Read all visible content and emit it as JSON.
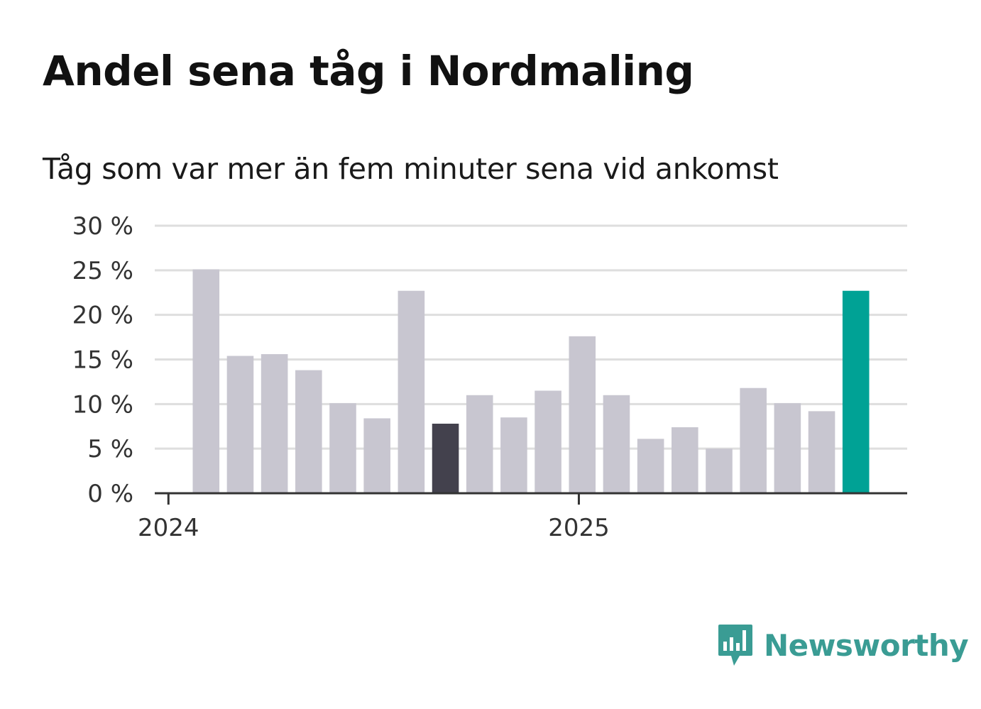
{
  "chart_data": {
    "type": "bar",
    "title": "Andel sena tåg i Nordmaling",
    "subtitle": "Tåg som var mer än fem minuter sena vid ankomst",
    "xlabel": "",
    "ylabel": "",
    "ylim": [
      0,
      30
    ],
    "yticks": [
      0,
      5,
      10,
      15,
      20,
      25,
      30
    ],
    "ytick_labels": [
      "0 %",
      "5 %",
      "10 %",
      "15 %",
      "20 %",
      "25 %",
      "30 %"
    ],
    "x_axis_labels": [
      {
        "label": "2024",
        "index": 0
      },
      {
        "label": "2025",
        "index": 12
      }
    ],
    "categories": [
      "2024-01",
      "2024-02",
      "2024-03",
      "2024-04",
      "2024-05",
      "2024-06",
      "2024-07",
      "2024-08",
      "2024-09",
      "2024-10",
      "2024-11",
      "2024-12",
      "2025-01",
      "2025-02",
      "2025-03",
      "2025-04",
      "2025-05",
      "2025-06",
      "2025-07",
      "2025-08",
      "2025-09",
      "2025-10"
    ],
    "values": [
      null,
      25.1,
      15.4,
      15.6,
      13.8,
      10.1,
      8.4,
      22.7,
      7.8,
      11.0,
      8.5,
      11.5,
      17.6,
      11.0,
      6.1,
      7.4,
      5.0,
      11.8,
      10.1,
      9.2,
      22.7,
      null
    ],
    "grid": true,
    "colors": {
      "default_bar": "#c8c6d0",
      "highlight_previous": "#43414d",
      "highlight_latest": "#00a295",
      "grid": "#dedede",
      "axis": "#333333"
    },
    "highlights": [
      {
        "index": 8,
        "color_key": "highlight_previous"
      },
      {
        "index": 20,
        "color_key": "highlight_latest"
      }
    ]
  },
  "brand": {
    "name": "Newsworthy",
    "icon": "newsworthy-logo-icon",
    "color": "#3a9c94"
  }
}
